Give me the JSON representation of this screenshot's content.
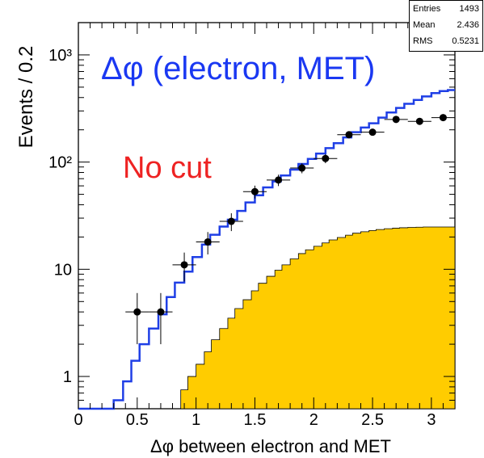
{
  "chart_data": {
    "type": "histogram",
    "xlabel": "Δφ between electron and MET",
    "ylabel": "Events / 0.2",
    "xlim": [
      0,
      3.2
    ],
    "ylim": [
      0.5,
      2000
    ],
    "y_scale": "log",
    "x_ticks": [
      "0",
      "0.5",
      "1",
      "1.5",
      "2",
      "2.5",
      "3"
    ],
    "x_tick_values": [
      0,
      0.5,
      1,
      1.5,
      2,
      2.5,
      3
    ],
    "y_ticks": [
      "1",
      "10",
      "10²",
      "10³"
    ],
    "y_tick_values": [
      1,
      10,
      100,
      1000
    ],
    "annotations": {
      "title": "Δφ (electron, MET)",
      "cut": "No cut"
    },
    "stats": [
      {
        "label": "Entries",
        "value": "1493"
      },
      {
        "label": "Mean",
        "value": "2.436"
      },
      {
        "label": "RMS",
        "value": "0.5231"
      }
    ],
    "colors": {
      "data": "#000000",
      "mc": "#1f3fe6",
      "background": "#ffcc00",
      "title": "#1a38f2",
      "cut": "#ee2222"
    },
    "series": [
      {
        "kind": "data_points",
        "x": [
          0.5,
          0.7,
          0.9,
          1.1,
          1.3,
          1.5,
          1.7,
          1.9,
          2.1,
          2.3,
          2.5,
          2.7,
          2.9,
          3.1
        ],
        "y": [
          4,
          4,
          11,
          18,
          28,
          53,
          68,
          88,
          108,
          180,
          190,
          250,
          240,
          260
        ],
        "xerr": 0.1
      },
      {
        "kind": "step_line",
        "x": [
          0.0,
          0.3,
          0.38,
          0.45,
          0.52,
          0.6,
          0.68,
          0.75,
          0.82,
          0.9,
          0.97,
          1.05,
          1.12,
          1.2,
          1.27,
          1.35,
          1.42,
          1.5,
          1.57,
          1.65,
          1.72,
          1.8,
          1.87,
          1.95,
          2.02,
          2.1,
          2.17,
          2.25,
          2.32,
          2.4,
          2.47,
          2.55,
          2.62,
          2.7,
          2.77,
          2.85,
          2.92,
          3.0,
          3.07,
          3.14
        ],
        "y": [
          0.5,
          0.6,
          0.9,
          1.4,
          2.0,
          2.8,
          3.8,
          5.5,
          7.5,
          9.5,
          13,
          17,
          21,
          25,
          29,
          35,
          42,
          49,
          58,
          66,
          75,
          85,
          96,
          107,
          120,
          135,
          150,
          170,
          190,
          210,
          230,
          260,
          290,
          320,
          350,
          380,
          410,
          440,
          460,
          470
        ]
      },
      {
        "kind": "filled_area",
        "x": [
          0.8,
          0.87,
          0.93,
          1.0,
          1.07,
          1.13,
          1.2,
          1.27,
          1.33,
          1.4,
          1.47,
          1.53,
          1.6,
          1.67,
          1.73,
          1.8,
          1.87,
          1.93,
          2.0,
          2.07,
          2.13,
          2.2,
          2.27,
          2.33,
          2.4,
          2.47,
          2.53,
          2.6,
          2.67,
          2.73,
          2.8,
          2.87,
          2.93,
          3.0,
          3.07,
          3.14
        ],
        "y": [
          0.5,
          0.75,
          1.0,
          1.3,
          1.7,
          2.2,
          2.8,
          3.5,
          4.3,
          5.2,
          6.3,
          7.4,
          8.6,
          9.8,
          11,
          12.5,
          14,
          15.2,
          16.4,
          17.6,
          18.8,
          19.8,
          20.8,
          21.7,
          22.4,
          23.0,
          23.5,
          23.9,
          24.2,
          24.4,
          24.6,
          24.7,
          24.8,
          24.8,
          24.8,
          24.8
        ]
      }
    ]
  }
}
